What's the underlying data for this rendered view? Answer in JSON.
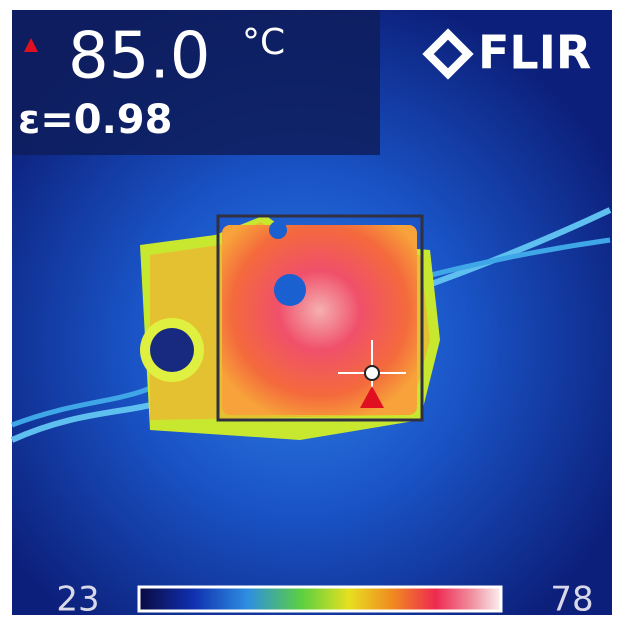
{
  "readout": {
    "value": "85.0",
    "unit": "°C"
  },
  "emissivity": "ε=0.98",
  "brand": "FLIR",
  "scale": {
    "min": 23,
    "max": 78
  }
}
